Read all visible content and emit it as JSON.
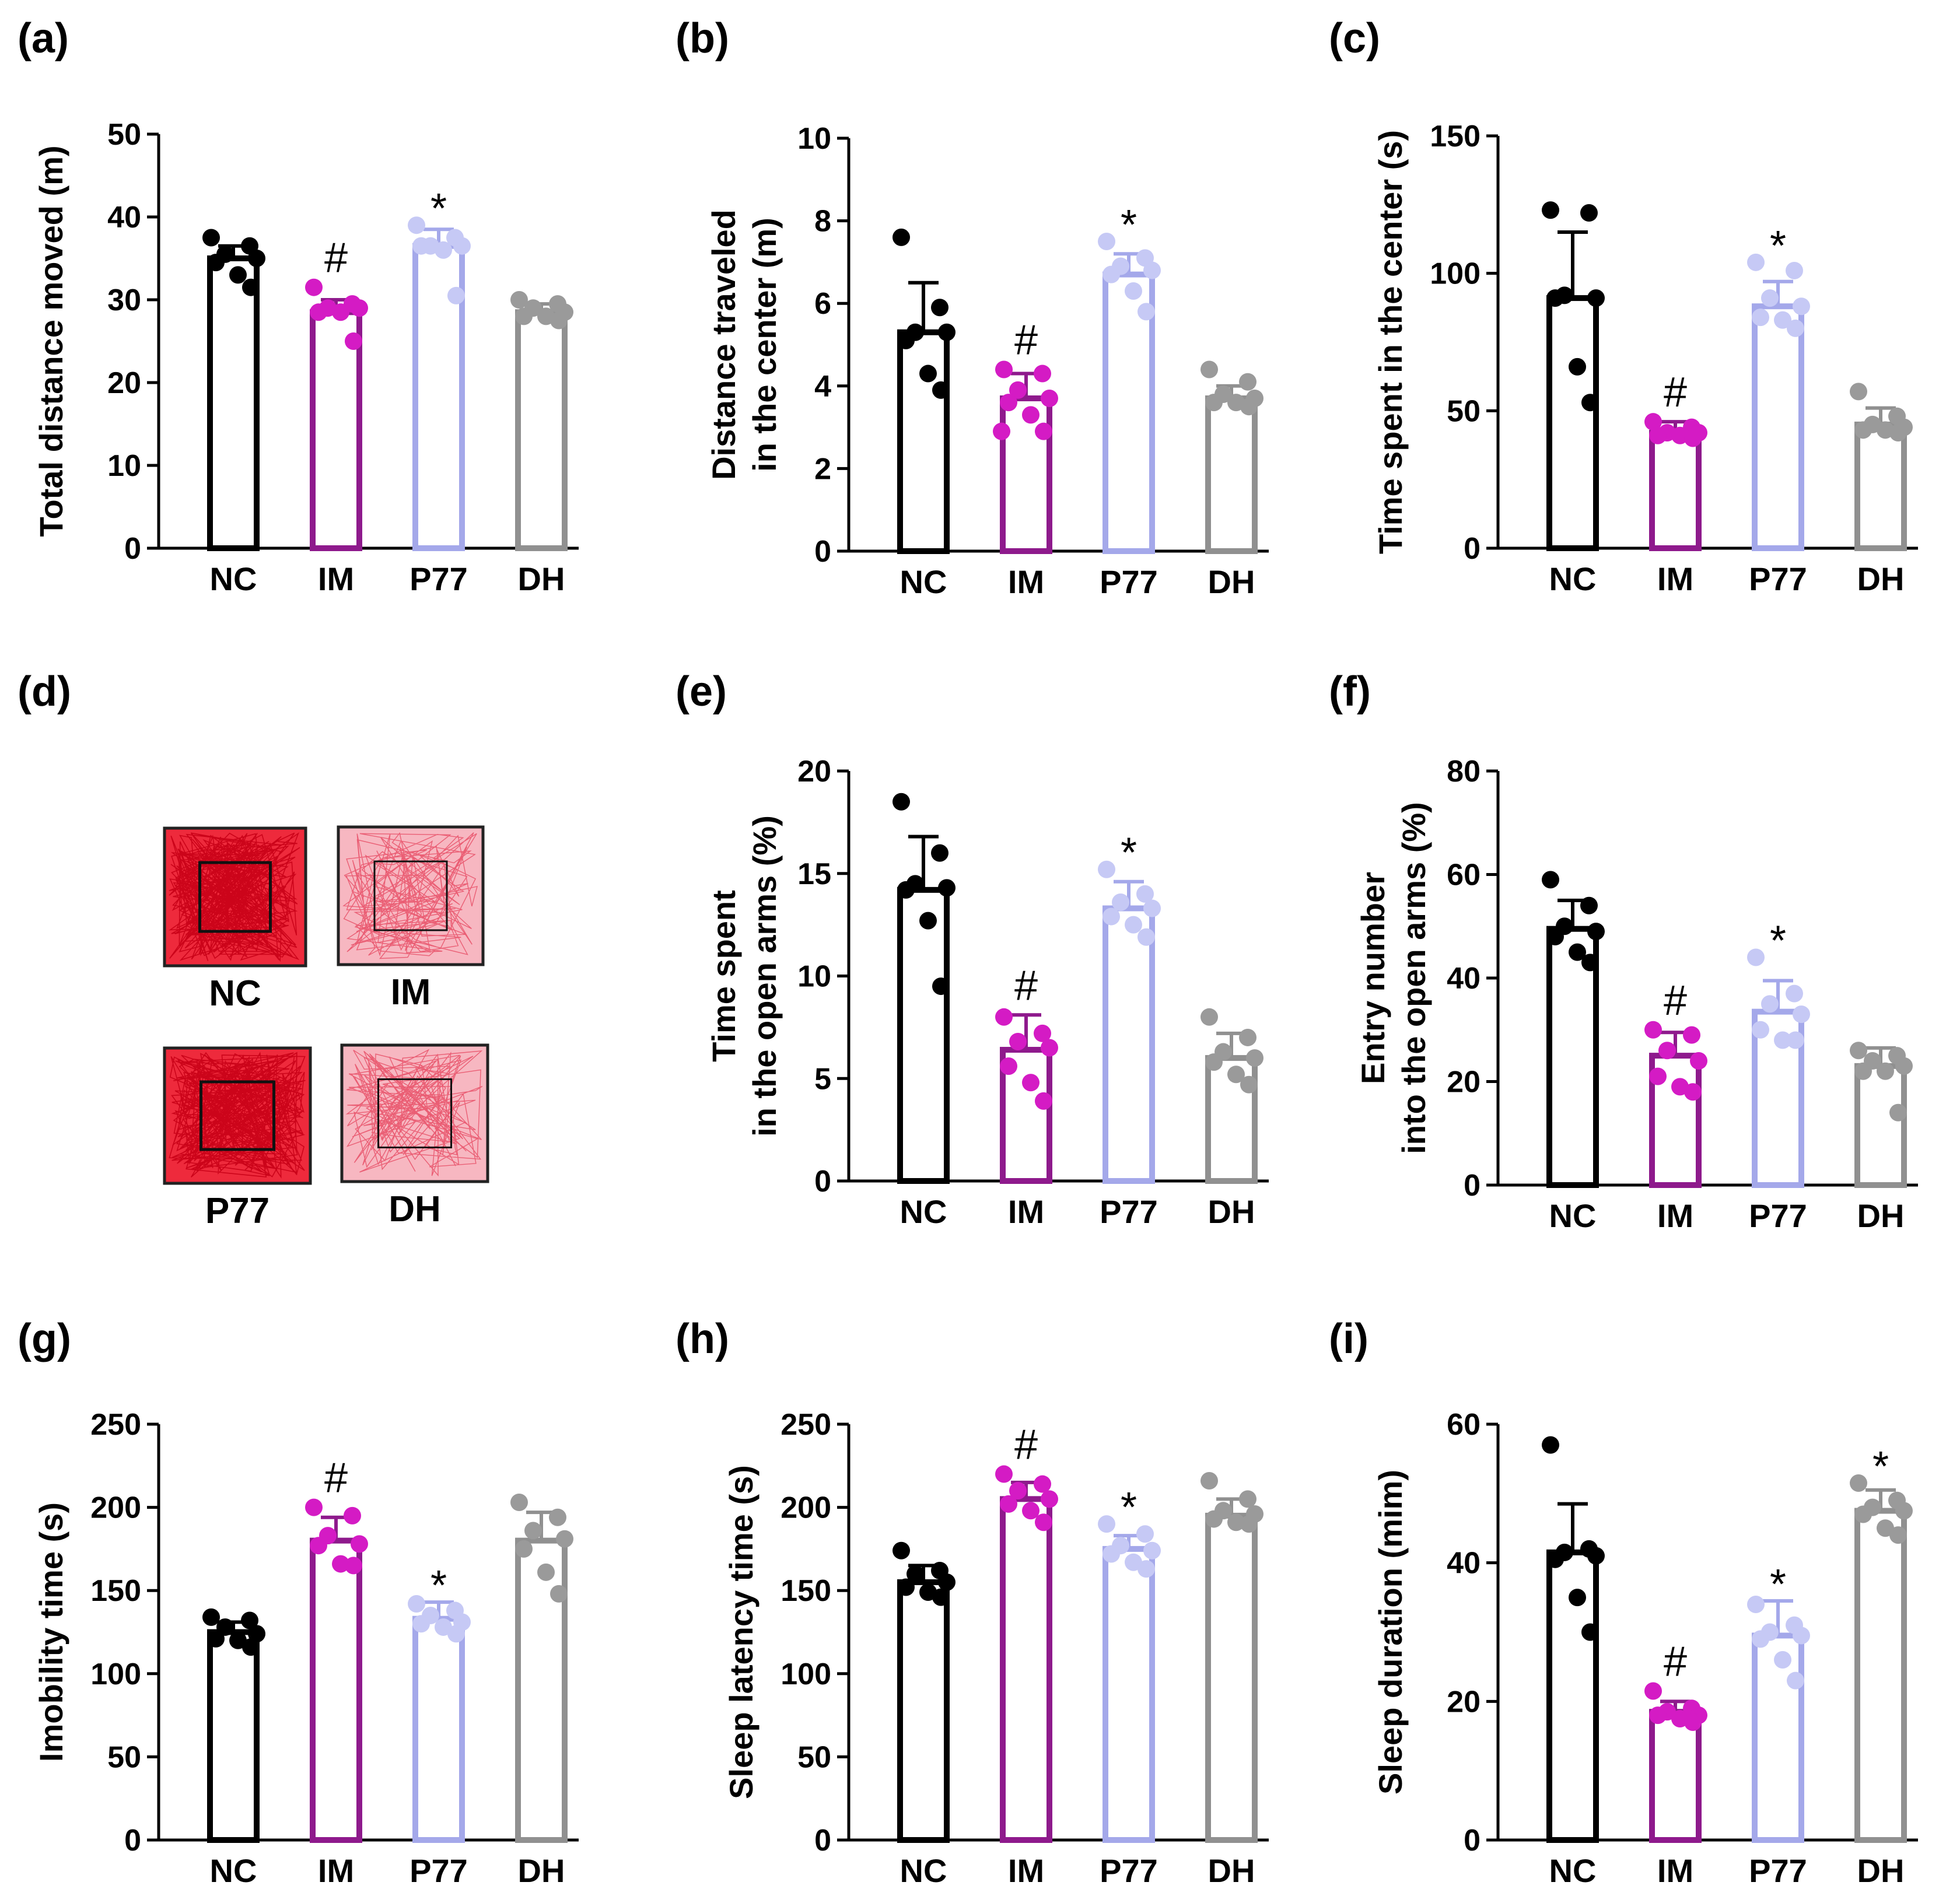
{
  "groups": [
    "NC",
    "IM",
    "P77",
    "DH"
  ],
  "group_colors": {
    "NC": "#000000",
    "IM": "#8e1a8c",
    "P77": "#a4a8ea",
    "DH": "#909090"
  },
  "dot_colors": {
    "NC": "#000000",
    "IM": "#d41bc4",
    "P77": "#c6c9f5",
    "DH": "#9a9a9a"
  },
  "track_panel": {
    "letter": "(d)",
    "tracks": [
      {
        "label": "NC",
        "density": "high"
      },
      {
        "label": "IM",
        "density": "low"
      },
      {
        "label": "P77",
        "density": "high"
      },
      {
        "label": "DH",
        "density": "low"
      }
    ]
  },
  "chart_data": [
    {
      "id": "a",
      "letter": "(a)",
      "type": "bar",
      "ylabel": [
        "Total distance moved (m)"
      ],
      "ylim": [
        0,
        50
      ],
      "ticks": [
        0,
        10,
        20,
        30,
        40,
        50
      ],
      "categories": [
        "NC",
        "IM",
        "P77",
        "DH"
      ],
      "values": [
        35,
        28.5,
        36.5,
        28.5
      ],
      "errors": [
        1.5,
        1.5,
        2,
        1
      ],
      "points": [
        [
          37.5,
          36.5,
          35.5,
          35,
          34.5,
          33,
          31.5
        ],
        [
          31.5,
          29.5,
          29,
          29,
          28.5,
          28.5,
          25
        ],
        [
          39,
          37.5,
          36.5,
          36.5,
          36.5,
          36,
          30.5
        ],
        [
          30,
          29.5,
          29,
          28.5,
          28,
          28,
          27.5
        ]
      ],
      "marks": [
        "",
        "#",
        "*",
        ""
      ]
    },
    {
      "id": "b",
      "letter": "(b)",
      "type": "bar",
      "ylabel": [
        "Distance traveled",
        "in the center (m)"
      ],
      "ylim": [
        0,
        10
      ],
      "ticks": [
        0,
        2,
        4,
        6,
        8,
        10
      ],
      "categories": [
        "NC",
        "IM",
        "P77",
        "DH"
      ],
      "values": [
        5.3,
        3.7,
        6.7,
        3.7
      ],
      "errors": [
        1.2,
        0.6,
        0.5,
        0.3
      ],
      "points": [
        [
          7.6,
          5.9,
          5.3,
          5.3,
          5.1,
          4.3,
          3.9
        ],
        [
          4.4,
          4.3,
          3.9,
          3.7,
          3.6,
          3.3,
          2.9,
          2.9
        ],
        [
          7.5,
          7.1,
          6.9,
          6.8,
          6.7,
          6.3,
          5.8
        ],
        [
          4.4,
          4.1,
          3.8,
          3.7,
          3.6,
          3.6,
          3.5
        ]
      ],
      "marks": [
        "",
        "#",
        "*",
        ""
      ]
    },
    {
      "id": "c",
      "letter": "(c)",
      "type": "bar",
      "ylabel": [
        "Time spent in the center (s)"
      ],
      "ylim": [
        0,
        150
      ],
      "ticks": [
        0,
        50,
        100,
        150
      ],
      "categories": [
        "NC",
        "IM",
        "P77",
        "DH"
      ],
      "values": [
        91,
        42,
        88,
        45
      ],
      "errors": [
        24,
        4,
        9,
        6
      ],
      "points": [
        [
          123,
          122,
          92,
          91,
          91,
          66,
          53
        ],
        [
          46,
          44,
          42,
          42,
          41,
          41,
          40
        ],
        [
          104,
          101,
          91,
          88,
          84,
          83,
          80
        ],
        [
          57,
          48,
          45,
          44,
          43,
          43,
          42
        ]
      ],
      "marks": [
        "",
        "#",
        "*",
        ""
      ]
    },
    {
      "id": "e",
      "letter": "(e)",
      "type": "bar",
      "ylabel": [
        "Time spent",
        "in the open arms (%)"
      ],
      "ylim": [
        0,
        20
      ],
      "ticks": [
        0,
        5,
        10,
        15,
        20
      ],
      "categories": [
        "NC",
        "IM",
        "P77",
        "DH"
      ],
      "values": [
        14.2,
        6.4,
        13.3,
        6
      ],
      "errors": [
        2.6,
        1.7,
        1.3,
        1.2
      ],
      "points": [
        [
          18.5,
          16,
          14.5,
          14.3,
          14.2,
          12.7,
          9.5
        ],
        [
          8,
          7.2,
          6.8,
          6.5,
          5.6,
          4.8,
          3.9
        ],
        [
          15.2,
          14,
          13.6,
          13.3,
          12.9,
          12.5,
          11.9
        ],
        [
          8,
          7,
          6.3,
          6,
          5.8,
          5.2,
          4.7
        ]
      ],
      "marks": [
        "",
        "#",
        "*",
        ""
      ]
    },
    {
      "id": "f",
      "letter": "(f)",
      "type": "bar",
      "ylabel": [
        "Entry number",
        "into the open arms (%)"
      ],
      "ylim": [
        0,
        80
      ],
      "ticks": [
        0,
        20,
        40,
        60,
        80
      ],
      "categories": [
        "NC",
        "IM",
        "P77",
        "DH"
      ],
      "values": [
        49.5,
        25,
        33.5,
        23
      ],
      "errors": [
        5.5,
        4.5,
        6,
        3.5
      ],
      "points": [
        [
          59,
          54,
          50,
          49,
          48,
          45,
          43
        ],
        [
          30,
          29,
          26,
          24,
          21,
          19,
          18
        ],
        [
          44,
          37,
          35,
          33,
          30,
          28,
          28
        ],
        [
          26,
          25,
          24,
          23,
          22,
          22,
          14
        ]
      ],
      "marks": [
        "",
        "#",
        "*",
        ""
      ]
    },
    {
      "id": "g",
      "letter": "(g)",
      "type": "bar",
      "ylabel": [
        "Imobility time (s)"
      ],
      "ylim": [
        0,
        250
      ],
      "ticks": [
        0,
        50,
        100,
        150,
        200,
        250
      ],
      "categories": [
        "NC",
        "IM",
        "P77",
        "DH"
      ],
      "values": [
        125,
        180,
        133,
        180
      ],
      "errors": [
        6,
        14,
        10,
        17
      ],
      "points": [
        [
          134,
          132,
          128,
          124,
          121,
          120,
          116
        ],
        [
          200,
          195,
          183,
          178,
          177,
          166,
          165
        ],
        [
          142,
          138,
          135,
          131,
          130,
          128,
          124
        ],
        [
          203,
          194,
          186,
          181,
          175,
          161,
          148
        ]
      ],
      "marks": [
        "",
        "#",
        "*",
        ""
      ]
    },
    {
      "id": "h",
      "letter": "(h)",
      "type": "bar",
      "ylabel": [
        "Sleep latency time (s)"
      ],
      "ylim": [
        0,
        250
      ],
      "ticks": [
        0,
        50,
        100,
        150,
        200,
        250
      ],
      "categories": [
        "NC",
        "IM",
        "P77",
        "DH"
      ],
      "values": [
        155,
        205,
        175,
        195
      ],
      "errors": [
        10,
        10,
        8,
        10
      ],
      "points": [
        [
          174,
          162,
          160,
          155,
          152,
          149,
          146
        ],
        [
          220,
          214,
          210,
          205,
          202,
          198,
          191
        ],
        [
          190,
          184,
          177,
          174,
          172,
          167,
          163
        ],
        [
          216,
          205,
          198,
          196,
          193,
          191,
          190
        ]
      ],
      "marks": [
        "",
        "#",
        "*",
        ""
      ]
    },
    {
      "id": "i",
      "letter": "(i)",
      "type": "bar",
      "ylabel": [
        "Sleep duration (mim)"
      ],
      "ylim": [
        0,
        60
      ],
      "ticks": [
        0,
        20,
        40,
        60
      ],
      "categories": [
        "NC",
        "IM",
        "P77",
        "DH"
      ],
      "values": [
        41.5,
        18.5,
        29.5,
        47.5
      ],
      "errors": [
        7,
        1.5,
        5,
        3
      ],
      "points": [
        [
          57,
          42,
          41.5,
          41,
          40.5,
          35,
          30
        ],
        [
          21.5,
          19,
          18.5,
          18,
          18,
          17.5,
          17
        ],
        [
          34,
          31,
          30,
          29.5,
          29,
          26,
          23
        ],
        [
          51.5,
          49,
          48,
          47.5,
          47,
          45,
          44
        ]
      ],
      "marks": [
        "",
        "#",
        "*",
        "*"
      ]
    }
  ]
}
